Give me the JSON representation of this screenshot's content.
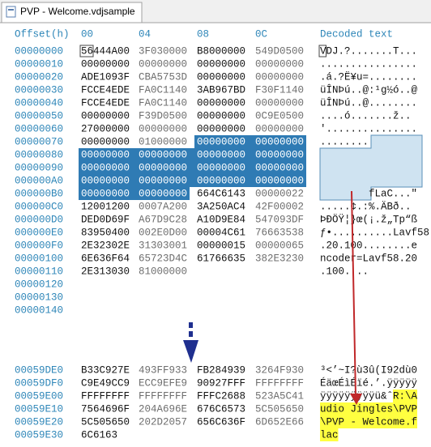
{
  "tab": {
    "title": "PVP - Welcome.vdjsample"
  },
  "header": {
    "offset": "Offset(h)",
    "columns": [
      "00",
      "04",
      "08",
      "0C"
    ],
    "decoded": "Decoded text"
  },
  "rows": [
    {
      "offset": "00000000",
      "hex": [
        "56444A00",
        "3F030000",
        "B8000000",
        "549D0500"
      ],
      "text": "VDJ.?.......T..."
    },
    {
      "offset": "00000010",
      "hex": [
        "00000000",
        "00000000",
        "00000000",
        "00000000"
      ],
      "text": "................"
    },
    {
      "offset": "00000020",
      "hex": [
        "ADE1093F",
        "CBA5753D",
        "00000000",
        "00000000"
      ],
      "text": ".á.?Ë¥u=........"
    },
    {
      "offset": "00000030",
      "hex": [
        "FCCE4EDE",
        "FA0C1140",
        "3AB967BD",
        "F30F1140"
      ],
      "text": "üÎNÞú..@:¹g½ó..@"
    },
    {
      "offset": "00000040",
      "hex": [
        "FCCE4EDE",
        "FA0C1140",
        "00000000",
        "00000000"
      ],
      "text": "üÎNÞú..@........"
    },
    {
      "offset": "00000050",
      "hex": [
        "00000000",
        "F39D0500",
        "00000000",
        "0C9E0500"
      ],
      "text": "....ó.......ž.."
    },
    {
      "offset": "00000060",
      "hex": [
        "27000000",
        "00000000",
        "00000000",
        "00000000"
      ],
      "text": "'..............."
    },
    {
      "offset": "00000070",
      "hex": [
        "00000000",
        "01000000",
        "00000000",
        "00000000"
      ],
      "text": "........"
    },
    {
      "offset": "00000080",
      "hex": [
        "00000000",
        "00000000",
        "00000000",
        "00000000"
      ]
    },
    {
      "offset": "00000090",
      "hex": [
        "00000000",
        "00000000",
        "00000000",
        "00000000"
      ]
    },
    {
      "offset": "000000A0",
      "hex": [
        "00000000",
        "00000000",
        "00000000",
        "00000000"
      ]
    },
    {
      "offset": "000000B0",
      "hex": [
        "00000000",
        "00000000",
        "664C6143",
        "00000022"
      ],
      "text": "        fLaC...\""
    },
    {
      "offset": "000000C0",
      "hex": [
        "12001200",
        "0007A200",
        "3A250AC4",
        "42F00002"
      ],
      "text": ".....¢.:%.ÄBð.."
    },
    {
      "offset": "000000D0",
      "hex": [
        "DED0D69F",
        "A67D9C28",
        "A10D9E84",
        "547093DF"
      ],
      "text": "ÞÐÖŸ¦}œ(¡.ž„Tp“ß"
    },
    {
      "offset": "000000E0",
      "hex": [
        "83950400",
        "002E0D00",
        "00004C61",
        "76663538"
      ],
      "text": "ƒ•..........Lavf58"
    },
    {
      "offset": "000000F0",
      "hex": [
        "2E32302E",
        "31303001",
        "00000015",
        "00000065"
      ],
      "text": ".20.100........e"
    },
    {
      "offset": "00000100",
      "hex": [
        "6E636F64",
        "65723D4C",
        "61766635",
        "382E3230"
      ],
      "text": "ncoder=Lavf58.20"
    },
    {
      "offset": "00000110",
      "hex": [
        "2E313030",
        "81000000"
      ],
      "text": ".100...."
    },
    {
      "offset": "00000120"
    },
    {
      "offset": "00000130"
    },
    {
      "offset": "00000140"
    }
  ],
  "bottom_rows": [
    {
      "offset": "00059DE0",
      "hex": [
        "B33C927E",
        "493FF933",
        "FB284939",
        "3264F930"
      ],
      "text": "³<’~I?ù3û(I92dù0"
    },
    {
      "offset": "00059DF0",
      "hex": [
        "C9E49CC9",
        "ECC9EFE9",
        "90927FFF",
        "FFFFFFFF"
      ],
      "text": "ÉäœÉìÉïé.’.ÿÿÿÿÿ"
    },
    {
      "offset": "00059E00",
      "hex": [
        "FFFFFFFF",
        "FFFFFFFF",
        "FFFC2688",
        "523A5C41"
      ],
      "text": "ÿÿÿÿÿÿÿÿÿü&ˆR:\\A"
    },
    {
      "offset": "00059E10",
      "hex": [
        "7564696F",
        "204A696E",
        "676C6573",
        "5C505650"
      ],
      "text": "udio Jingles\\PVP"
    },
    {
      "offset": "00059E20",
      "hex": [
        "5C505650",
        "202D2057",
        "656C636F",
        "6D652E66"
      ],
      "text": "\\PVP - Welcome.f"
    },
    {
      "offset": "00059E30",
      "hex": [
        "6C6163"
      ],
      "text": "lac"
    }
  ]
}
